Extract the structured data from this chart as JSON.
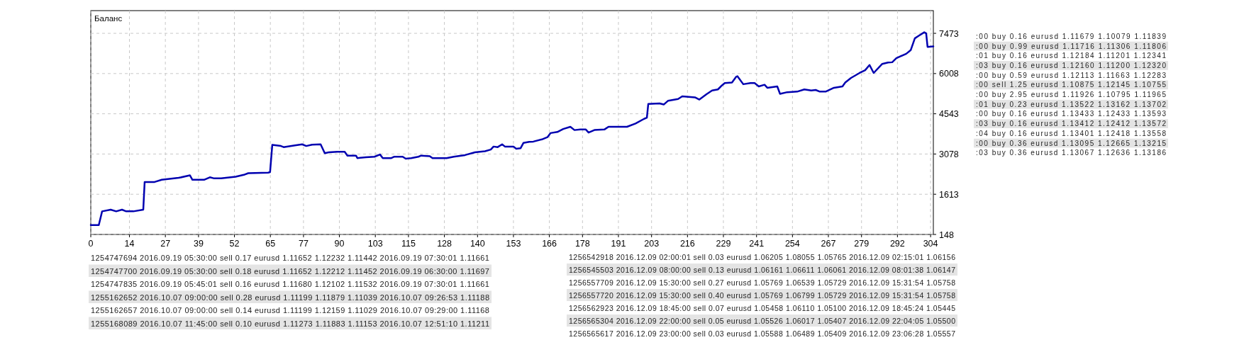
{
  "chart_data": [
    {
      "type": "line",
      "title": "Баланс",
      "x": [
        0,
        2.9,
        4.1,
        7.2,
        9.2,
        11.3,
        12.8,
        15.4,
        19,
        19.5,
        23.1,
        25.7,
        31.8,
        35.9,
        36.8,
        41,
        43.1,
        44.7,
        47.2,
        52.4,
        55.4,
        57,
        64.2,
        64.9,
        65.7,
        68.8,
        69.8,
        73.9,
        76.5,
        78,
        80.1,
        83.2,
        84.7,
        86.2,
        89.3,
        91.9,
        92.9,
        96,
        96.5,
        99.6,
        102.7,
        104.7,
        105.7,
        108.8,
        109.9,
        112.9,
        114,
        116,
        118.6,
        119.6,
        122.7,
        123.7,
        128.8,
        131.4,
        135.5,
        139.1,
        142.7,
        144.8,
        145.8,
        147.3,
        148.9,
        149.9,
        153,
        154,
        155.6,
        156.6,
        158.7,
        160.2,
        163.3,
        165.3,
        166.4,
        168.9,
        171,
        173.6,
        175.1,
        177.2,
        179.2,
        180.2,
        182.3,
        185.9,
        187.4,
        194.1,
        197.2,
        200.3,
        201.3,
        201.8,
        205.9,
        207.4,
        209,
        212.6,
        214.1,
        218.7,
        220.3,
        222.8,
        224.9,
        227,
        228.5,
        229.5,
        232.1,
        233.6,
        234.1,
        236.2,
        238.8,
        240.3,
        241.8,
        243.9,
        244.9,
        248.5,
        249.5,
        252.1,
        255.7,
        258.3,
        260.8,
        262.4,
        263.9,
        266,
        269,
        272.1,
        273.1,
        275.2,
        278.3,
        280.3,
        281.9,
        283.4,
        286.5,
        288.6,
        290.1,
        291.6,
        295.2,
        296.8,
        298.3,
        299.8,
        301.7,
        302.4,
        302.9,
        305
      ],
      "series": [
        {
          "color": "#0000b0",
          "values": [
            490,
            490,
            990,
            1050,
            990,
            1050,
            990,
            990,
            1050,
            2060,
            2060,
            2140,
            2210,
            2300,
            2140,
            2140,
            2230,
            2190,
            2190,
            2250,
            2320,
            2380,
            2400,
            2420,
            3410,
            3370,
            3330,
            3390,
            3430,
            3370,
            3420,
            3430,
            3110,
            3140,
            3160,
            3160,
            3020,
            3020,
            2930,
            2960,
            2980,
            3060,
            2930,
            2930,
            2980,
            2980,
            2910,
            2930,
            2980,
            3020,
            3000,
            2930,
            2930,
            2980,
            3040,
            3140,
            3180,
            3240,
            3350,
            3330,
            3430,
            3350,
            3350,
            3270,
            3290,
            3480,
            3520,
            3530,
            3610,
            3690,
            3840,
            3880,
            3990,
            4070,
            3950,
            3970,
            3970,
            3860,
            3950,
            3970,
            4070,
            4070,
            4190,
            4360,
            4400,
            4900,
            4920,
            4880,
            5020,
            5080,
            5180,
            5140,
            5060,
            5250,
            5390,
            5430,
            5580,
            5660,
            5680,
            5890,
            5910,
            5620,
            5660,
            5660,
            5540,
            5600,
            5490,
            5540,
            5270,
            5330,
            5350,
            5430,
            5390,
            5410,
            5350,
            5350,
            5490,
            5540,
            5680,
            5850,
            6030,
            6130,
            6320,
            6030,
            6360,
            6410,
            6420,
            6570,
            6730,
            6860,
            7290,
            7390,
            7510,
            7470,
            6980,
            7000
          ]
        }
      ],
      "xlim": [
        0,
        305
      ],
      "xticks": [
        0,
        14,
        27,
        39,
        52,
        65,
        77,
        90,
        103,
        115,
        128,
        140,
        153,
        166,
        178,
        191,
        203,
        216,
        229,
        241,
        254,
        267,
        279,
        292,
        304
      ],
      "ylim": [
        148,
        8300
      ],
      "yticks": [
        148,
        1613,
        3078,
        4543,
        6008,
        7473
      ],
      "grid": true,
      "marker": "none",
      "line_style": "solid"
    },
    {
      "type": "other",
      "annotations": [
        ":00 buy 0.16 eurusd 1.11679 1.10079 1.11839",
        ":00 buy 0.99 eurusd 1.11716 1.11306 1.11806",
        ":01 buy 0.16 eurusd 1.12184 1.11201 1.12341",
        ":03 buy 0.16 eurusd 1.12160 1.11200 1.12320",
        ":00 buy 0.59 eurusd 1.12113 1.11663 1.12283",
        ":00 sell 1.25 eurusd 1.10875 1.12145 1.10755",
        ":00 buy 2.95 eurusd 1.11926 1.10795 1.11965",
        ":01 buy 0.23 eurusd 1.13522 1.13162 1.13702",
        ":00 buy 0.16 eurusd 1.13433 1.12433 1.13593",
        ":03 buy 0.16 eurusd 1.13412 1.12412 1.13572",
        ":04 buy 0.16 eurusd 1.13401 1.12418 1.13558",
        ":00 buy 0.36 eurusd 1.13095 1.12665 1.13215",
        ":03 buy 0.36 eurusd 1.13067 1.12636 1.13186"
      ]
    },
    {
      "type": "other",
      "annotations": [
        "1254747694 2016.09.19 05:30:00 sell 0.17 eurusd 1.11652 1.12232 1.11442 2016.09.19 07:30:01 1.11661",
        "1254747700 2016.09.19 05:30:00 sell 0.18 eurusd 1.11652 1.12212 1.11452 2016.09.19 06:30:00 1.11697",
        "1254747835 2016.09.19 05:45:01 sell 0.16 eurusd 1.11680 1.12102 1.11532 2016.09.19 07:30:01 1.11661",
        "1255162652 2016.10.07 09:00:00 sell 0.28 eurusd 1.11199 1.11879 1.11039 2016.10.07 09:26:53 1.11188",
        "1255162657 2016.10.07 09:00:00 sell 0.14 eurusd 1.11199 1.12159 1.11029 2016.10.07 09:29:00 1.11168",
        "1255168089 2016.10.07 11:45:00 sell 0.10 eurusd 1.11273 1.11883 1.11153 2016.10.07 12:51:10 1.11211"
      ]
    },
    {
      "type": "other",
      "annotations": [
        "1256542918 2016.12.09 02:00:01 sell 0.03 eurusd 1.06205 1.08055 1.05765 2016.12.09 02:15:01 1.06156",
        "1256545503 2016.12.09 08:00:00 sell 0.13 eurusd 1.06161 1.06611 1.06061 2016.12.09 08:01:38 1.06147",
        "1256557709 2016.12.09 15:30:00 sell 0.27 eurusd 1.05769 1.06539 1.05729 2016.12.09 15:31:54 1.05758",
        "1256557720 2016.12.09 15:30:00 sell 0.40 eurusd 1.05769 1.06799 1.05729 2016.12.09 15:31:54 1.05758",
        "1256562923 2016.12.09 18:45:00 sell 0.07 eurusd 1.05458 1.06110 1.05100 2016.12.09 18:45:24 1.05445",
        "1256565304 2016.12.09 22:00:00 sell 0.05 eurusd 1.05526 1.06017 1.05407 2016.12.09 22:04:05 1.05500",
        "1256565617 2016.12.09 23:00:00 sell 0.03 eurusd 1.05588 1.06489 1.05409 2016.12.09 23:06:28 1.05557"
      ]
    }
  ]
}
